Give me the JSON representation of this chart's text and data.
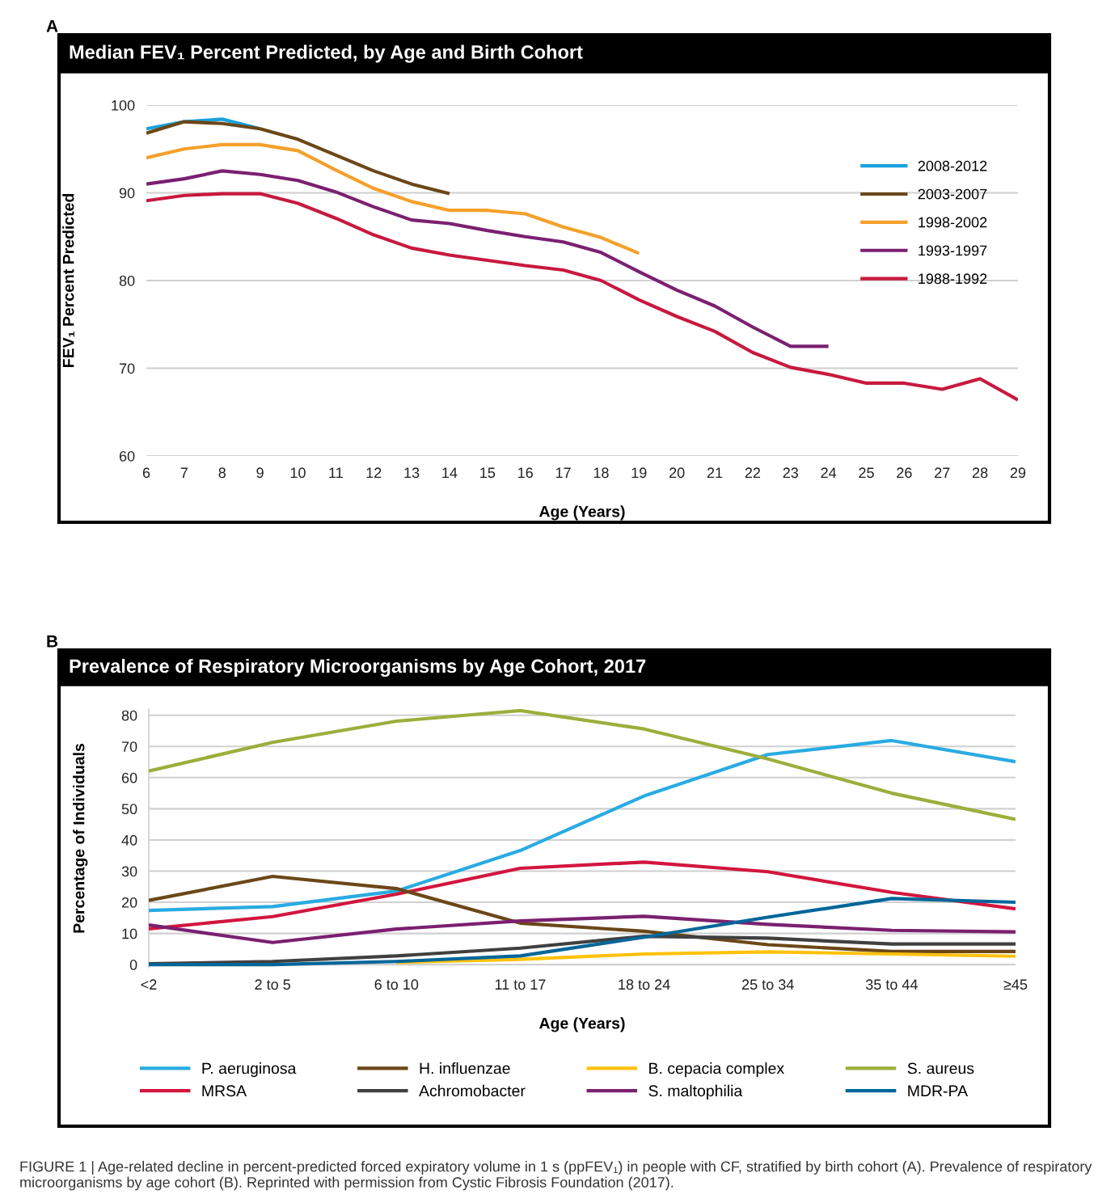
{
  "chart_data": [
    {
      "type": "line",
      "title": "Median FEV₁ Percent Predicted, by Age and Birth Cohort",
      "xlabel": "Age (Years)",
      "ylabel": "FEV₁ Percent Predicted",
      "annotations": [
        "A"
      ],
      "xlim": [
        6,
        29
      ],
      "xticks": [
        6,
        7,
        8,
        9,
        10,
        11,
        12,
        13,
        14,
        15,
        16,
        17,
        18,
        19,
        20,
        21,
        22,
        23,
        24,
        25,
        26,
        27,
        28,
        29
      ],
      "ylim": [
        60,
        100
      ],
      "yticks": [
        60,
        70,
        80,
        90,
        100
      ],
      "grid": "y",
      "legend": "top right",
      "line_style": "solid",
      "marker": "none",
      "series": [
        {
          "name": "2008-2012",
          "color": "#1ba1dc",
          "x": [
            6,
            7,
            8,
            9
          ],
          "values": [
            97.3,
            98.1,
            98.4,
            97.3
          ]
        },
        {
          "name": "2003-2007",
          "color": "#6b4718",
          "x": [
            6,
            7,
            8,
            9,
            10,
            11,
            12,
            13,
            14
          ],
          "values": [
            96.8,
            98.1,
            97.9,
            97.3,
            96.1,
            94.3,
            92.5,
            91.0,
            89.9
          ]
        },
        {
          "name": "1998-2002",
          "color": "#f5a02b",
          "x": [
            6,
            7,
            8,
            9,
            10,
            11,
            12,
            13,
            14,
            15,
            16,
            17,
            18,
            19
          ],
          "values": [
            94.0,
            95.0,
            95.5,
            95.5,
            94.8,
            92.6,
            90.5,
            89.0,
            88.0,
            88.0,
            87.6,
            86.1,
            84.9,
            83.1
          ]
        },
        {
          "name": "1993-1997",
          "color": "#7b2070",
          "x": [
            6,
            7,
            8,
            9,
            10,
            11,
            12,
            13,
            14,
            15,
            16,
            17,
            18,
            19,
            20,
            21,
            22,
            23,
            24
          ],
          "values": [
            91.0,
            91.6,
            92.5,
            92.1,
            91.4,
            90.1,
            88.4,
            86.9,
            86.5,
            85.7,
            85.0,
            84.4,
            83.2,
            81.0,
            78.9,
            77.1,
            74.7,
            72.5,
            72.5
          ]
        },
        {
          "name": "1988-1992",
          "color": "#c8193f",
          "x": [
            6,
            7,
            8,
            9,
            10,
            11,
            12,
            13,
            14,
            15,
            16,
            17,
            18,
            19,
            20,
            21,
            22,
            23,
            24,
            25,
            26,
            27,
            28,
            29
          ],
          "values": [
            89.1,
            89.7,
            89.9,
            89.9,
            88.8,
            87.1,
            85.2,
            83.7,
            82.9,
            82.3,
            81.7,
            81.2,
            80.0,
            77.8,
            75.9,
            74.2,
            71.8,
            70.1,
            69.3,
            68.3,
            68.3,
            67.6,
            68.8,
            66.4
          ]
        }
      ]
    },
    {
      "type": "line",
      "title": "Prevalence of Respiratory Microorganisms by Age Cohort, 2017",
      "xlabel": "Age (Years)",
      "ylabel": "Percentage of Individuals",
      "annotations": [
        "B",
        "FIGURE 1 | Age-related decline in percent-predicted forced expiratory volume in 1 s (ppFEV₁) in people with CF, stratified by birth cohort (A). Prevalence of respiratory microorganisms by age cohort (B). Reprinted with permission from Cystic Fibrosis Foundation (2017)."
      ],
      "categories": [
        "<2",
        "2 to 5",
        "6 to 10",
        "11 to 17",
        "18 to 24",
        "25 to 34",
        "35 to 44",
        "≥45"
      ],
      "ylim": [
        -1,
        82
      ],
      "yticks": [
        0,
        10,
        20,
        30,
        40,
        50,
        60,
        70,
        80
      ],
      "grid": "y",
      "legend": "bottom",
      "line_style": "solid",
      "marker": "none",
      "series": [
        {
          "name": "P. aeruginosa",
          "color": "#29abe2",
          "values": [
            17.4,
            18.6,
            23.6,
            36.6,
            54.1,
            67.4,
            71.9,
            65.1
          ]
        },
        {
          "name": "MRSA",
          "color": "#d2163f",
          "values": [
            11.5,
            15.4,
            22.6,
            30.9,
            32.9,
            29.8,
            23.2,
            17.9
          ]
        },
        {
          "name": "H. influenzae",
          "color": "#6b4718",
          "values": [
            20.6,
            28.3,
            24.4,
            13.3,
            10.7,
            6.4,
            4.2,
            4.2
          ]
        },
        {
          "name": "Achromobacter",
          "color": "#404040",
          "values": [
            0.3,
            1.0,
            2.8,
            5.3,
            9.1,
            8.5,
            6.6,
            6.6
          ]
        },
        {
          "name": "B. cepacia complex",
          "color": "#ffc20e",
          "values": [
            null,
            null,
            0.7,
            1.7,
            3.4,
            4.1,
            3.4,
            2.7
          ]
        },
        {
          "name": "S. maltophilia",
          "color": "#7b2070",
          "values": [
            12.7,
            7.1,
            11.4,
            14.0,
            15.5,
            12.9,
            11.0,
            10.5
          ]
        },
        {
          "name": "S. aureus",
          "color": "#9cae3c",
          "values": [
            62.1,
            71.3,
            78.1,
            81.5,
            75.6,
            66.0,
            55.0,
            46.6
          ]
        },
        {
          "name": "MDR-PA",
          "color": "#006699",
          "values": [
            0.0,
            0.0,
            1.0,
            2.8,
            8.8,
            15.2,
            21.2,
            20.0
          ]
        }
      ]
    }
  ]
}
